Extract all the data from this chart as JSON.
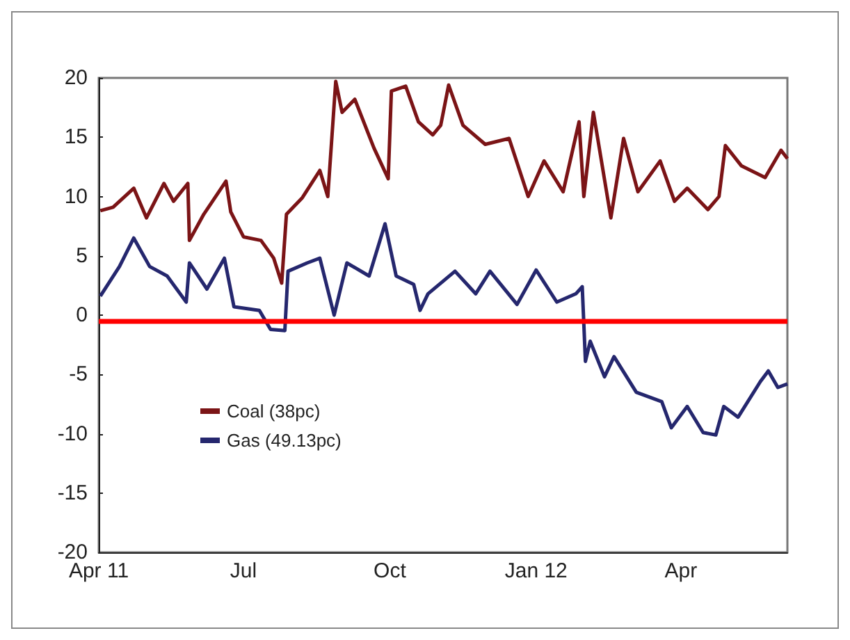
{
  "chart_data": {
    "type": "line",
    "x": [
      "2011-04-02",
      "2011-04-10",
      "2011-04-23",
      "2011-05-01",
      "2011-05-12",
      "2011-05-18",
      "2011-05-27",
      "2011-05-28",
      "2011-06-06",
      "2011-06-20",
      "2011-06-23",
      "2011-07-01",
      "2011-07-12",
      "2011-07-20",
      "2011-07-25",
      "2011-07-28",
      "2011-08-07",
      "2011-08-18",
      "2011-08-23",
      "2011-08-28",
      "2011-09-01",
      "2011-09-09",
      "2011-09-21",
      "2011-09-30",
      "2011-10-02",
      "2011-10-11",
      "2011-10-19",
      "2011-10-28",
      "2011-11-02",
      "2011-11-07",
      "2011-11-16",
      "2011-11-30",
      "2011-12-15",
      "2011-12-27",
      "2012-01-06",
      "2012-01-18",
      "2012-01-28",
      "2012-01-31",
      "2012-02-06",
      "2012-02-17",
      "2012-02-25",
      "2012-03-05",
      "2012-03-19",
      "2012-03-28",
      "2012-04-05",
      "2012-04-18",
      "2012-04-25",
      "2012-04-29",
      "2012-05-09",
      "2012-05-24",
      "2012-06-03",
      "2012-06-07"
    ],
    "series": [
      {
        "name": "Coal (38pc)",
        "color": "#7b1416",
        "values": [
          8.8,
          9.1,
          10.7,
          8.2,
          11.1,
          9.6,
          11.1,
          6.3,
          8.5,
          11.3,
          8.7,
          6.6,
          6.3,
          4.8,
          2.7,
          8.5,
          9.9,
          12.2,
          10.0,
          19.7,
          17.1,
          18.2,
          14.1,
          11.5,
          18.9,
          19.3,
          16.3,
          15.2,
          16.0,
          19.4,
          16.0,
          14.4,
          14.9,
          10.0,
          13.0,
          10.4,
          16.3,
          10.0,
          17.1,
          8.2,
          14.9,
          10.4,
          13.0,
          9.6,
          10.7,
          8.9,
          10.0,
          14.3,
          12.6,
          11.6,
          13.9,
          13.2
        ]
      },
      {
        "name": "Gas (49.13pc)",
        "color": "#25276e",
        "x": [
          "2011-04-02",
          "2011-04-14",
          "2011-04-23",
          "2011-05-03",
          "2011-05-14",
          "2011-05-26",
          "2011-05-28",
          "2011-06-08",
          "2011-06-19",
          "2011-06-25",
          "2011-07-11",
          "2011-07-18",
          "2011-07-27",
          "2011-07-29",
          "2011-08-10",
          "2011-08-18",
          "2011-08-27",
          "2011-09-04",
          "2011-09-18",
          "2011-09-28",
          "2011-10-05",
          "2011-10-16",
          "2011-10-20",
          "2011-10-25",
          "2011-11-11",
          "2011-11-24",
          "2011-12-03",
          "2011-12-20",
          "2012-01-01",
          "2012-01-14",
          "2012-01-26",
          "2012-01-30",
          "2012-02-01",
          "2012-02-04",
          "2012-02-13",
          "2012-02-19",
          "2012-03-04",
          "2012-03-20",
          "2012-03-26",
          "2012-04-05",
          "2012-04-15",
          "2012-04-23",
          "2012-04-28",
          "2012-05-07",
          "2012-05-21",
          "2012-05-26",
          "2012-06-01",
          "2012-06-07"
        ],
        "values": [
          1.6,
          4.1,
          6.5,
          4.1,
          3.3,
          1.1,
          4.4,
          2.2,
          4.8,
          0.7,
          0.4,
          -1.2,
          -1.3,
          3.7,
          4.4,
          4.8,
          0.0,
          4.4,
          3.3,
          7.7,
          3.3,
          2.6,
          0.4,
          1.8,
          3.7,
          1.8,
          3.7,
          0.9,
          3.8,
          1.1,
          1.8,
          2.4,
          -3.9,
          -2.2,
          -5.2,
          -3.5,
          -6.5,
          -7.3,
          -9.5,
          -7.7,
          -9.9,
          -10.1,
          -7.7,
          -8.6,
          -5.6,
          -4.7,
          -6.1,
          -5.8
        ]
      }
    ],
    "xlim": [
      "2011-04-01",
      "2012-06-07"
    ],
    "xticks": [
      {
        "value": "2011-04-01",
        "label": "Apr 11"
      },
      {
        "value": "2011-07-01",
        "label": "Jul"
      },
      {
        "value": "2011-10-01",
        "label": "Oct"
      },
      {
        "value": "2012-01-01",
        "label": "Jan 12"
      },
      {
        "value": "2012-04-01",
        "label": "Apr"
      }
    ],
    "ylim": [
      -20,
      20
    ],
    "yticks": [
      -20,
      -15,
      -10,
      -5,
      0,
      5,
      10,
      15,
      20
    ],
    "ref_lines": [
      {
        "axis": "y",
        "value": -0.5,
        "color": "#ff0000",
        "line_style": "solid"
      }
    ],
    "grid": false,
    "legend": "bottom left",
    "marker": "none",
    "line_style": "solid"
  }
}
